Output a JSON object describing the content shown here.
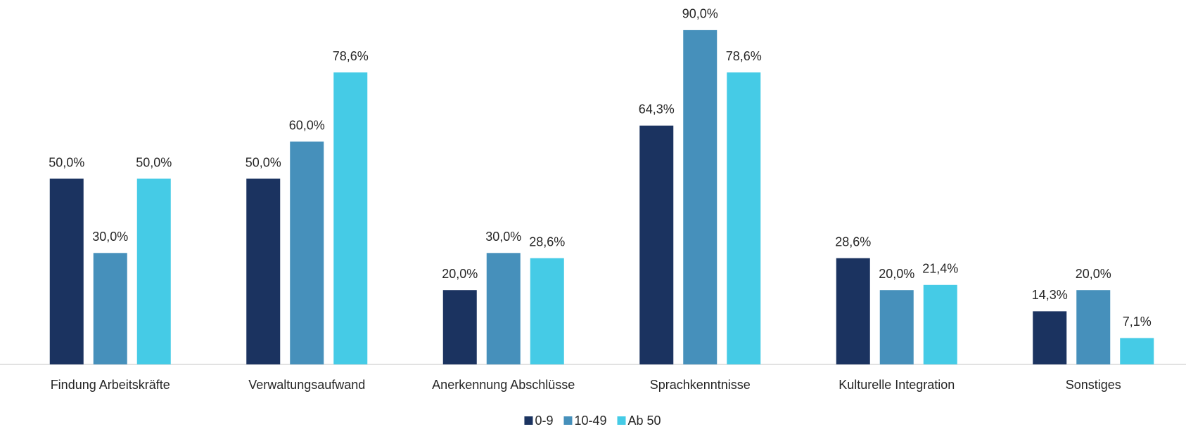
{
  "chart_data": {
    "type": "bar",
    "categories": [
      "Findung Arbeitskräfte",
      "Verwaltungsaufwand",
      "Anerkennung Abschlüsse",
      "Sprachkenntnisse",
      "Kulturelle Integration",
      "Sonstiges"
    ],
    "series": [
      {
        "name": "0-9",
        "color": "#1b3360",
        "values": [
          50.0,
          50.0,
          20.0,
          64.3,
          28.6,
          14.3
        ],
        "value_labels": [
          "50,0%",
          "50,0%",
          "20,0%",
          "64,3%",
          "28,6%",
          "14,3%"
        ]
      },
      {
        "name": "10-49",
        "color": "#4690bb",
        "values": [
          30.0,
          60.0,
          30.0,
          90.0,
          20.0,
          20.0
        ],
        "value_labels": [
          "30,0%",
          "60,0%",
          "30,0%",
          "90,0%",
          "20,0%",
          "20,0%"
        ]
      },
      {
        "name": "Ab 50",
        "color": "#45cbe6",
        "values": [
          50.0,
          78.6,
          28.6,
          78.6,
          21.4,
          7.1
        ],
        "value_labels": [
          "50,0%",
          "78,6%",
          "28,6%",
          "78,6%",
          "21,4%",
          "7,1%"
        ]
      }
    ],
    "ylim": [
      0,
      100
    ],
    "legend": "bottom"
  }
}
